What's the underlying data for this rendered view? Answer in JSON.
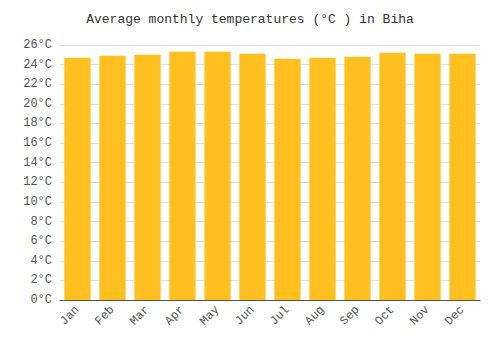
{
  "chart_data": {
    "type": "bar",
    "title": "Average monthly temperatures (°C ) in Biha",
    "categories": [
      "Jan",
      "Feb",
      "Mar",
      "Apr",
      "May",
      "Jun",
      "Jul",
      "Aug",
      "Sep",
      "Oct",
      "Nov",
      "Dec"
    ],
    "values": [
      24.7,
      24.9,
      25.0,
      25.3,
      25.3,
      25.1,
      24.6,
      24.7,
      24.8,
      25.2,
      25.1,
      25.1
    ],
    "color": "#FFC020",
    "ylim": [
      0,
      26
    ],
    "yticks": [
      {
        "value": 0,
        "label": "0°C"
      },
      {
        "value": 2,
        "label": "2°C"
      },
      {
        "value": 4,
        "label": "4°C"
      },
      {
        "value": 6,
        "label": "6°C"
      },
      {
        "value": 8,
        "label": "8°C"
      },
      {
        "value": 10,
        "label": "10°C"
      },
      {
        "value": 12,
        "label": "12°C"
      },
      {
        "value": 14,
        "label": "14°C"
      },
      {
        "value": 16,
        "label": "16°C"
      },
      {
        "value": 18,
        "label": "18°C"
      },
      {
        "value": 20,
        "label": "20°C"
      },
      {
        "value": 22,
        "label": "22°C"
      },
      {
        "value": 24,
        "label": "24°C"
      },
      {
        "value": 26,
        "label": "26°C"
      }
    ],
    "grid": true
  }
}
